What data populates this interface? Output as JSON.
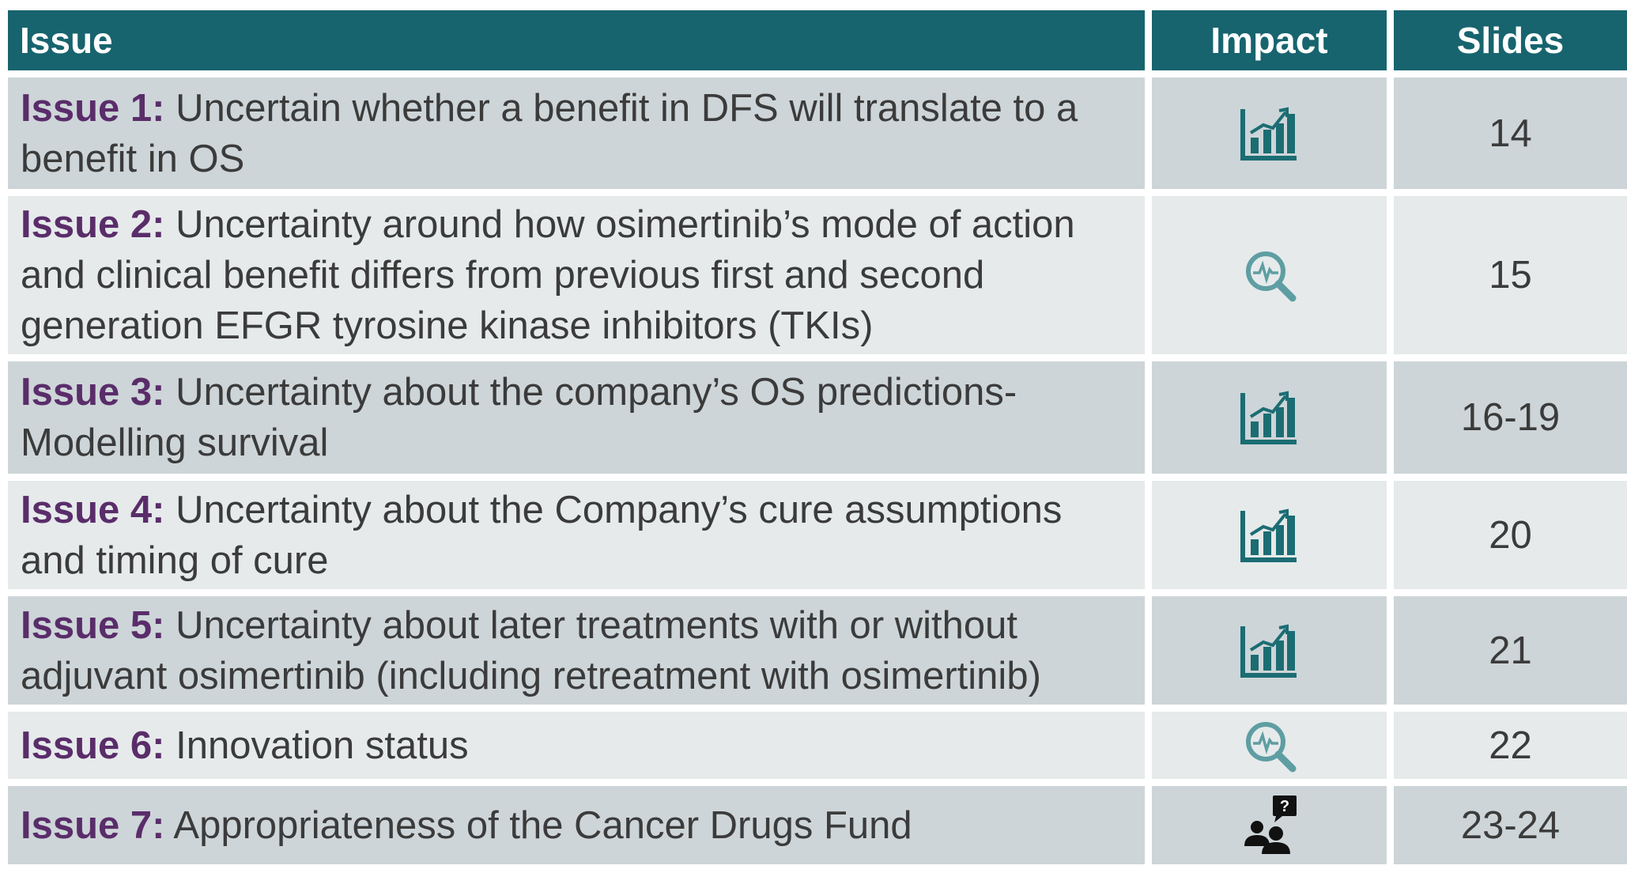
{
  "table": {
    "header": [
      "Issue",
      "Impact",
      "Slides"
    ],
    "rows": [
      {
        "label": "Issue 1:",
        "text": "Uncertain whether a benefit in DFS will translate to a benefit in OS",
        "slides": "14"
      },
      {
        "label": "Issue 2:",
        "text": "Uncertainty around how osimertinib’s mode of action and clinical benefit differs from previous first and second generation EFGR tyrosine kinase inhibitors (TKIs)",
        "slides": "15"
      },
      {
        "label": "Issue 3:",
        "text": "Uncertainty about the company’s OS predictions- Modelling survival",
        "slides": "16-19"
      },
      {
        "label": "Issue 4:",
        "text": "Uncertainty about the Company’s cure assumptions and timing of cure",
        "slides": "20"
      },
      {
        "label": "Issue 5:",
        "text": "Uncertainty about later treatments with or without adjuvant osimertinib (including retreatment with osimertinib)",
        "slides": "21"
      },
      {
        "label": "Issue 6:",
        "text": "Innovation status",
        "slides": "22"
      },
      {
        "label": "Issue 7:",
        "text": "Appropriateness of the Cancer Drugs Fund",
        "slides": "23-24"
      }
    ]
  }
}
